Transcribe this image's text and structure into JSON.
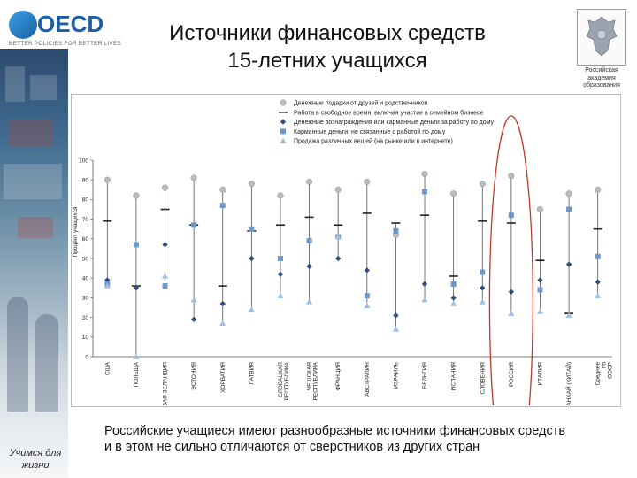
{
  "logo": {
    "name": "OECD",
    "tagline": "BETTER POLICIES FOR BETTER LIVES"
  },
  "title_line1": "Источники финансовых средств",
  "title_line2": "15-летних учащихся",
  "emblem_caption": [
    "Российская",
    "академия",
    "образования"
  ],
  "sidebar_caption": [
    "Учимся для",
    "жизни"
  ],
  "bottom_text": [
    "Российские учащиеся имеют разнообразные источники финансовых средств",
    "и в этом не сильно отличаются от сверстников из других стран"
  ],
  "colors": {
    "series1": "#b8bcc4",
    "series2": "#222222",
    "series3": "#2f4f7f",
    "series4": "#6d98cc",
    "series5": "#9ec0e4",
    "highlight": "#c0392b"
  },
  "chart_data": {
    "type": "scatter",
    "ylabel": "Процент учащихся",
    "ylim": [
      0,
      100
    ],
    "yticks": [
      0,
      10,
      20,
      30,
      40,
      50,
      60,
      70,
      80,
      90,
      100
    ],
    "categories": [
      "США",
      "ПОЛЬША",
      "НОВАЯ ЗЕЛАНДИЯ",
      "ЭСТОНИЯ",
      "ХОРВАТИЯ",
      "ЛАТВИЯ",
      "СЛОВАЦКАЯ РЕСПУБЛИКА",
      "ЧЕШСКАЯ РЕСПУБЛИКА",
      "ФРАНЦИЯ",
      "АВСТРАЛИЯ",
      "ИЗРАИЛЬ",
      "БЕЛЬГИЯ",
      "ИСПАНИЯ",
      "СЛОВЕНИЯ",
      "РОССИЯ",
      "ИТАЛИЯ",
      "ШАНХАЙ (КИТАЙ)",
      "Среднее по ОЭСР"
    ],
    "highlight_category": "РОССИЯ",
    "series": [
      {
        "name": "Денежные подарки от друзей и родственников",
        "marker": "circle",
        "values": [
          90,
          82,
          86,
          91,
          85,
          88,
          82,
          89,
          85,
          89,
          62,
          93,
          83,
          88,
          92,
          75,
          83,
          85
        ]
      },
      {
        "name": "Работа в свободное время, включая участие в семейном бизнесе",
        "marker": "dash",
        "values": [
          69,
          36,
          75,
          67,
          36,
          64,
          67,
          71,
          67,
          73,
          68,
          72,
          41,
          69,
          68,
          49,
          22,
          65
        ]
      },
      {
        "name": "Денежные вознаграждения или карманные деньги за работу по дому",
        "marker": "diamond",
        "values": [
          39,
          35,
          57,
          19,
          27,
          50,
          42,
          46,
          50,
          44,
          21,
          37,
          30,
          35,
          33,
          39,
          47,
          38
        ]
      },
      {
        "name": "Карманные деньги, не связанные с работой по дому",
        "marker": "square",
        "values": [
          37,
          57,
          36,
          67,
          77,
          65,
          50,
          59,
          61,
          31,
          64,
          84,
          37,
          43,
          72,
          34,
          75,
          51
        ]
      },
      {
        "name": "Продажа различных вещей (на рынке или в интернете)",
        "marker": "triangle",
        "values": [
          36,
          0,
          41,
          29,
          17,
          24,
          31,
          28,
          61,
          26,
          14,
          29,
          27,
          28,
          22,
          23,
          21,
          31
        ]
      }
    ]
  }
}
